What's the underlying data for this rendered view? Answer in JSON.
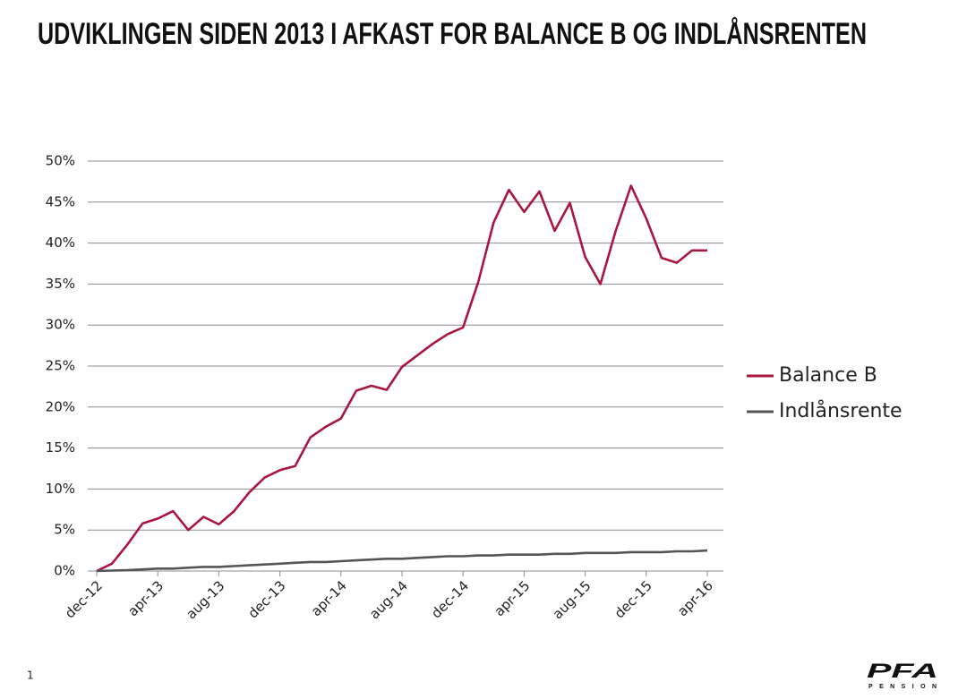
{
  "chart_data": {
    "type": "line",
    "title": "UDVIKLINGEN SIDEN 2013 I AFKAST FOR BALANCE B OG INDLÅNSRENTEN",
    "categories": [
      "dec-12",
      null,
      null,
      null,
      "apr-13",
      null,
      null,
      null,
      "aug-13",
      null,
      null,
      null,
      "dec-13",
      null,
      null,
      null,
      "apr-14",
      null,
      null,
      null,
      "aug-14",
      null,
      null,
      null,
      "dec-14",
      null,
      null,
      null,
      "apr-15",
      null,
      null,
      null,
      "aug-15",
      null,
      null,
      null,
      "dec-15",
      null,
      null,
      null,
      "apr-16"
    ],
    "series": [
      {
        "name": "Balance B",
        "color": "#a8173f",
        "values": [
          0,
          0.9,
          3.2,
          5.8,
          6.4,
          7.3,
          5.0,
          6.6,
          5.7,
          7.3,
          9.6,
          11.4,
          12.3,
          12.8,
          16.3,
          17.6,
          18.6,
          22.0,
          22.6,
          22.1,
          24.9,
          26.3,
          27.7,
          28.9,
          29.7,
          35.3,
          42.5,
          46.5,
          43.8,
          46.3,
          41.5,
          44.9,
          38.3,
          35.0,
          41.5,
          47.0,
          43.0,
          38.2,
          37.6,
          39.1,
          39.1
        ]
      },
      {
        "name": "Indlånsrente",
        "color": "#555555",
        "values": [
          0,
          0.05,
          0.1,
          0.2,
          0.3,
          0.3,
          0.4,
          0.5,
          0.5,
          0.6,
          0.7,
          0.8,
          0.9,
          1.0,
          1.1,
          1.1,
          1.2,
          1.3,
          1.4,
          1.5,
          1.5,
          1.6,
          1.7,
          1.8,
          1.8,
          1.9,
          1.9,
          2.0,
          2.0,
          2.0,
          2.1,
          2.1,
          2.2,
          2.2,
          2.2,
          2.3,
          2.3,
          2.3,
          2.4,
          2.4,
          2.5
        ]
      }
    ],
    "ylim": [
      0,
      50
    ],
    "yticks": [
      {
        "value": 0,
        "label": "0%"
      },
      {
        "value": 5,
        "label": "5%"
      },
      {
        "value": 10,
        "label": "10%"
      },
      {
        "value": 15,
        "label": "15%"
      },
      {
        "value": 20,
        "label": "20%"
      },
      {
        "value": 25,
        "label": "25%"
      },
      {
        "value": 30,
        "label": "30%"
      },
      {
        "value": 35,
        "label": "35%"
      },
      {
        "value": 40,
        "label": "40%"
      },
      {
        "value": 45,
        "label": "45%"
      },
      {
        "value": 50,
        "label": "50%"
      }
    ],
    "grid": true,
    "legend": "right"
  },
  "page_number": "1",
  "logo": {
    "name": "PFA",
    "subtitle": "PENSION"
  }
}
